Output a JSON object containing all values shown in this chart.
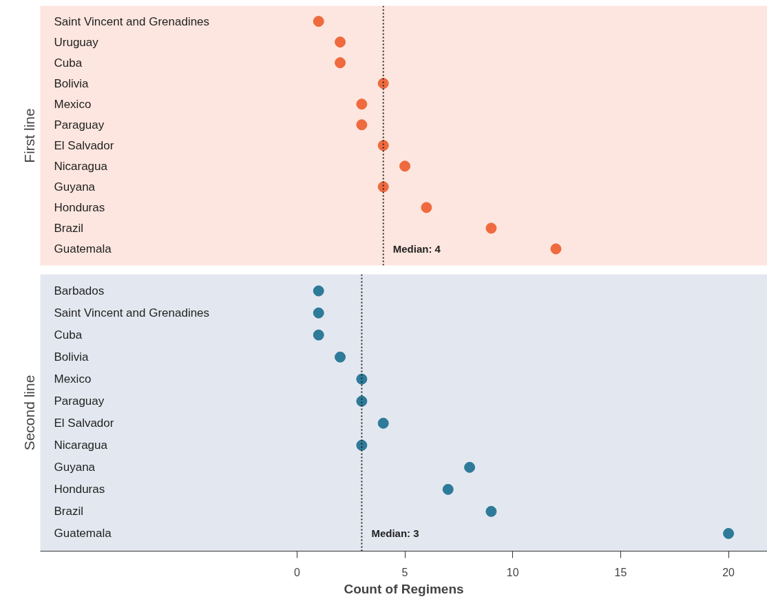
{
  "chart_data": [
    {
      "type": "scatter",
      "orientation": "horizontal",
      "ylabel": "First line",
      "categories": [
        "Saint Vincent and Grenadines",
        "Uruguay",
        "Cuba",
        "Bolivia",
        "Mexico",
        "Paraguay",
        "El Salvador",
        "Nicaragua",
        "Guyana",
        "Honduras",
        "Brazil",
        "Guatemala"
      ],
      "series": [
        {
          "color": "#ef6a3e",
          "values": [
            1,
            2,
            2,
            4,
            3,
            3,
            4,
            5,
            4,
            6,
            9,
            12
          ]
        }
      ],
      "xlim": [
        -11.9,
        21.8
      ],
      "xticks": [
        0,
        5,
        10,
        15,
        20
      ],
      "tick_labels": "y",
      "grid": false,
      "marker": "circle",
      "ref_lines": [
        {
          "axis": "x",
          "value": 4,
          "label": "Median: 4",
          "line_style": "dotted"
        }
      ]
    },
    {
      "type": "scatter",
      "orientation": "horizontal",
      "ylabel": "Second line",
      "xlabel": "Count of Regimens",
      "categories": [
        "Barbados",
        "Saint Vincent and Grenadines",
        "Cuba",
        "Bolivia",
        "Mexico",
        "Paraguay",
        "El Salvador",
        "Nicaragua",
        "Guyana",
        "Honduras",
        "Brazil",
        "Guatemala"
      ],
      "series": [
        {
          "color": "#2e7a99",
          "values": [
            1,
            1,
            1,
            2,
            3,
            3,
            4,
            3,
            8,
            7,
            9,
            20
          ]
        }
      ],
      "xlim": [
        -11.9,
        21.8
      ],
      "xticks": [
        0,
        5,
        10,
        15,
        20
      ],
      "grid": false,
      "marker": "circle",
      "ref_lines": [
        {
          "axis": "x",
          "value": 3,
          "label": "Median: 3",
          "line_style": "dotted"
        }
      ]
    }
  ]
}
